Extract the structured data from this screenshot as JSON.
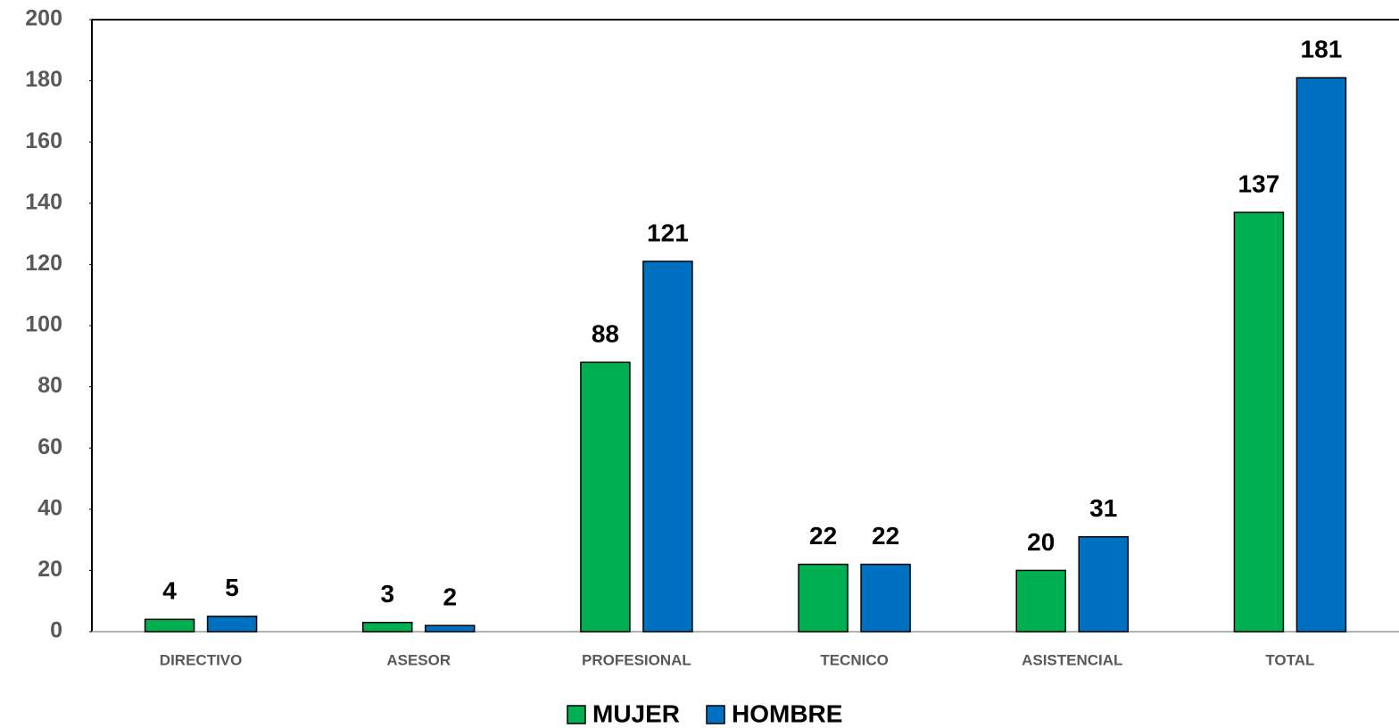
{
  "chart_data": {
    "type": "bar",
    "categories": [
      "DIRECTIVO",
      "ASESOR",
      "PROFESIONAL",
      "TECNICO",
      "ASISTENCIAL",
      "TOTAL"
    ],
    "series": [
      {
        "name": "MUJER",
        "color": "#00b050",
        "values": [
          4,
          3,
          88,
          22,
          20,
          137
        ]
      },
      {
        "name": "HOMBRE",
        "color": "#0070c0",
        "values": [
          5,
          2,
          121,
          22,
          31,
          181
        ]
      }
    ],
    "ylim": [
      0,
      200
    ],
    "yticks": [
      0,
      20,
      40,
      60,
      80,
      100,
      120,
      140,
      160,
      180,
      200
    ],
    "legend": "bottom",
    "data_labels": true
  }
}
